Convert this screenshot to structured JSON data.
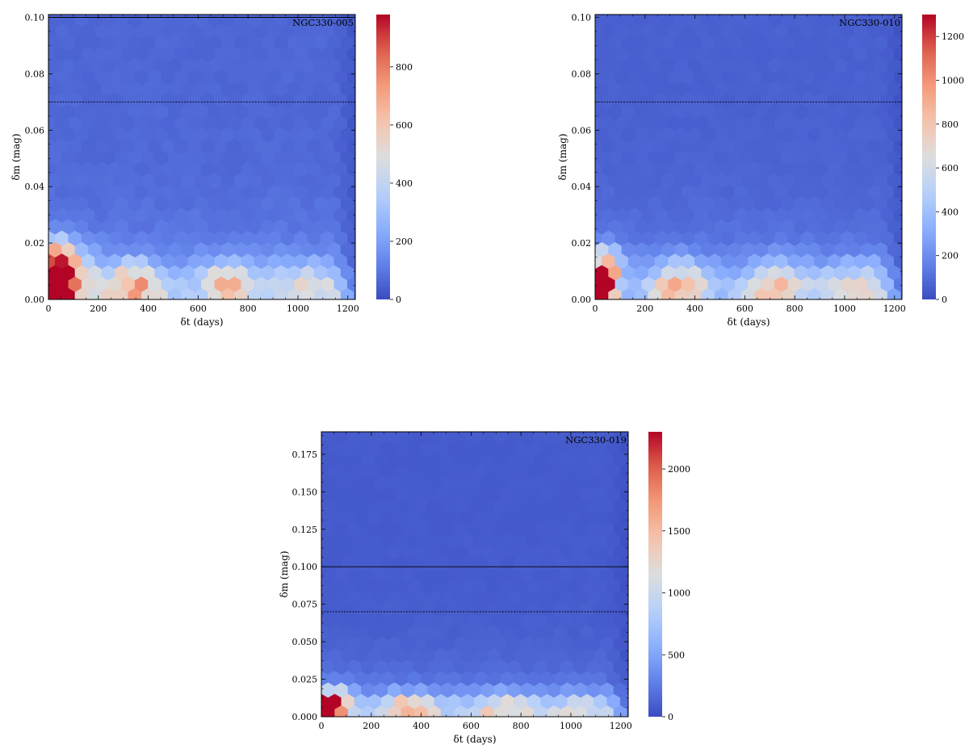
{
  "chart_data": [
    {
      "type": "heatmap",
      "label": "NGC330-005",
      "xlabel": "δt (days)",
      "ylabel": "δm (mag)",
      "xlim": [
        0,
        1230
      ],
      "ylim": [
        0,
        0.101
      ],
      "xticks": [
        0,
        200,
        400,
        600,
        800,
        1000,
        1200
      ],
      "xtick_labels": [
        "0",
        "200",
        "400",
        "600",
        "800",
        "1000",
        "1200"
      ],
      "yticks": [
        0.0,
        0.02,
        0.04,
        0.06,
        0.08,
        0.1
      ],
      "ytick_labels": [
        "0.00",
        "0.02",
        "0.04",
        "0.06",
        "0.08",
        "0.10"
      ],
      "hlines": [
        {
          "y": 0.1,
          "style": "solid"
        },
        {
          "y": 0.07,
          "style": "dashed"
        }
      ],
      "colorbar": {
        "min": 0,
        "max": 980,
        "ticks": [
          0,
          200,
          400,
          600,
          800
        ],
        "tick_labels": [
          "0",
          "200",
          "400",
          "600",
          "800"
        ]
      },
      "colormap": "coolwarm",
      "hotspots": [
        {
          "x": 20,
          "y": 0.003,
          "count": 980,
          "spread_x": 40,
          "spread_y": 0.004
        },
        {
          "x": 25,
          "y": 0.012,
          "count": 700,
          "spread_x": 45,
          "spread_y": 0.006
        },
        {
          "x": 80,
          "y": 0.006,
          "count": 520,
          "spread_x": 70,
          "spread_y": 0.008
        },
        {
          "x": 340,
          "y": 0.005,
          "count": 520,
          "spread_x": 90,
          "spread_y": 0.006
        },
        {
          "x": 720,
          "y": 0.005,
          "count": 420,
          "spread_x": 90,
          "spread_y": 0.006
        },
        {
          "x": 1050,
          "y": 0.005,
          "count": 300,
          "spread_x": 110,
          "spread_y": 0.006
        }
      ],
      "background": {
        "base": 60,
        "near_zero": 200,
        "decay_mag": 0.015
      }
    },
    {
      "type": "heatmap",
      "label": "NGC330-010",
      "xlabel": "δt (days)",
      "ylabel": "δm (mag)",
      "xlim": [
        0,
        1230
      ],
      "ylim": [
        0,
        0.101
      ],
      "xticks": [
        0,
        200,
        400,
        600,
        800,
        1000,
        1200
      ],
      "xtick_labels": [
        "0",
        "200",
        "400",
        "600",
        "800",
        "1000",
        "1200"
      ],
      "yticks": [
        0.0,
        0.02,
        0.04,
        0.06,
        0.08,
        0.1
      ],
      "ytick_labels": [
        "0.00",
        "0.02",
        "0.04",
        "0.06",
        "0.08",
        "0.10"
      ],
      "hlines": [
        {
          "y": 0.07,
          "style": "dashed"
        }
      ],
      "colorbar": {
        "min": 0,
        "max": 1300,
        "ticks": [
          0,
          200,
          400,
          600,
          800,
          1000,
          1200
        ],
        "tick_labels": [
          "0",
          "200",
          "400",
          "600",
          "800",
          "1000",
          "1200"
        ]
      },
      "colormap": "coolwarm",
      "hotspots": [
        {
          "x": 20,
          "y": 0.003,
          "count": 1300,
          "spread_x": 35,
          "spread_y": 0.004
        },
        {
          "x": 35,
          "y": 0.01,
          "count": 800,
          "spread_x": 50,
          "spread_y": 0.006
        },
        {
          "x": 340,
          "y": 0.005,
          "count": 620,
          "spread_x": 90,
          "spread_y": 0.006
        },
        {
          "x": 720,
          "y": 0.005,
          "count": 580,
          "spread_x": 90,
          "spread_y": 0.006
        },
        {
          "x": 1050,
          "y": 0.005,
          "count": 420,
          "spread_x": 110,
          "spread_y": 0.006
        }
      ],
      "background": {
        "base": 60,
        "near_zero": 260,
        "decay_mag": 0.015
      }
    },
    {
      "type": "heatmap",
      "label": "NGC330-019",
      "xlabel": "δt (days)",
      "ylabel": "δm (mag)",
      "xlim": [
        0,
        1230
      ],
      "ylim": [
        0,
        0.19
      ],
      "xticks": [
        0,
        200,
        400,
        600,
        800,
        1000,
        1200
      ],
      "xtick_labels": [
        "0",
        "200",
        "400",
        "600",
        "800",
        "1000",
        "1200"
      ],
      "yticks": [
        0.0,
        0.025,
        0.05,
        0.075,
        0.1,
        0.125,
        0.15,
        0.175
      ],
      "ytick_labels": [
        "0.000",
        "0.025",
        "0.050",
        "0.075",
        "0.100",
        "0.125",
        "0.150",
        "0.175"
      ],
      "hlines": [
        {
          "y": 0.1,
          "style": "solid"
        },
        {
          "y": 0.07,
          "style": "dashed"
        }
      ],
      "colorbar": {
        "min": 0,
        "max": 2300,
        "ticks": [
          0,
          500,
          1000,
          1500,
          2000
        ],
        "tick_labels": [
          "0",
          "500",
          "1000",
          "1500",
          "2000"
        ]
      },
      "colormap": "coolwarm",
      "hotspots": [
        {
          "x": 20,
          "y": 0.006,
          "count": 2300,
          "spread_x": 30,
          "spread_y": 0.005
        },
        {
          "x": 60,
          "y": 0.008,
          "count": 1400,
          "spread_x": 50,
          "spread_y": 0.008
        },
        {
          "x": 340,
          "y": 0.006,
          "count": 1100,
          "spread_x": 110,
          "spread_y": 0.007
        },
        {
          "x": 720,
          "y": 0.006,
          "count": 950,
          "spread_x": 110,
          "spread_y": 0.007
        },
        {
          "x": 1050,
          "y": 0.006,
          "count": 750,
          "spread_x": 110,
          "spread_y": 0.007
        }
      ],
      "background": {
        "base": 80,
        "near_zero": 420,
        "decay_mag": 0.02
      }
    }
  ]
}
